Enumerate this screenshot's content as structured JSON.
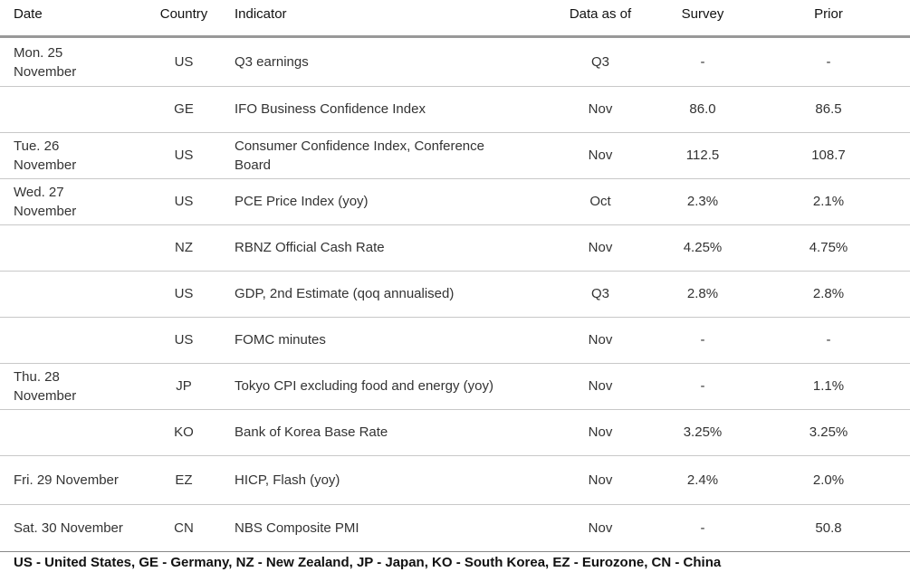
{
  "table": {
    "headers": [
      "Date",
      "Country",
      "Indicator",
      "Data as of",
      "Survey",
      "Prior"
    ],
    "rows": [
      [
        "Mon. 25\nNovember",
        "US",
        "Q3 earnings",
        "Q3",
        "-",
        "-"
      ],
      [
        null,
        "GE",
        "IFO Business Confidence Index",
        "Nov",
        "86.0",
        "86.5"
      ],
      [
        "Tue. 26\nNovember",
        "US",
        "Consumer Confidence Index, Conference\nBoard",
        "Nov",
        "112.5",
        "108.7"
      ],
      [
        "Wed. 27\nNovember",
        "US",
        "PCE Price Index (yoy)",
        "Oct",
        "2.3%",
        "2.1%"
      ],
      [
        null,
        "NZ",
        "RBNZ Official Cash Rate",
        "Nov",
        "4.25%",
        "4.75%"
      ],
      [
        null,
        "US",
        "GDP, 2nd Estimate (qoq annualised)",
        "Q3",
        "2.8%",
        "2.8%"
      ],
      [
        null,
        "US",
        "FOMC minutes",
        "Nov",
        "-",
        "-"
      ],
      [
        "Thu. 28\nNovember",
        "JP",
        "Tokyo CPI excluding food and energy (yoy)",
        "Nov",
        "-",
        "1.1%"
      ],
      [
        null,
        "KO",
        "Bank of Korea Base Rate",
        "Nov",
        "3.25%",
        "3.25%"
      ],
      [
        "Fri. 29 November",
        "EZ",
        "HICP, Flash (yoy)",
        "Nov",
        "2.4%",
        "2.0%"
      ],
      [
        "Sat. 30 November",
        "CN",
        "NBS Composite PMI",
        "Nov",
        "-",
        "50.8"
      ]
    ]
  },
  "footer": "US - United States, GE - Germany, NZ - New Zealand, JP - Japan, KO - South Korea, EZ - Eurozone, CN - China"
}
